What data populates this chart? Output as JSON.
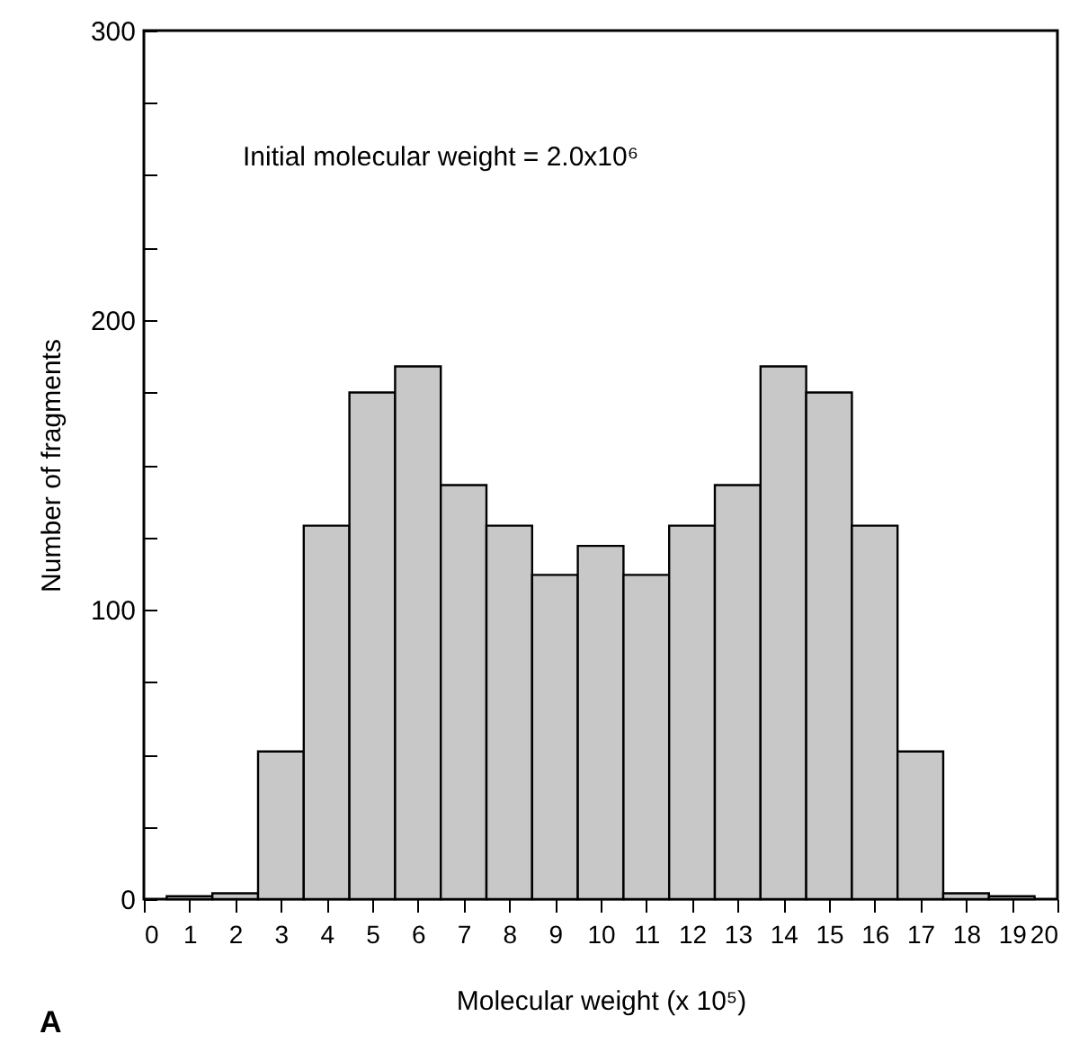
{
  "chart_data": {
    "type": "histogram",
    "xlabel": "Molecular weight (x 10⁵)",
    "ylabel": "Number of fragments",
    "annotations": [
      "Initial molecular weight = 2.0x10⁶",
      "A"
    ],
    "bins": [
      0.5,
      1.5,
      2.5,
      3.5,
      4.5,
      5.5,
      6.5,
      7.5,
      8.5,
      9.5,
      10.5,
      11.5,
      12.5,
      13.5,
      14.5,
      15.5,
      16.5,
      17.5,
      18.5,
      19.5
    ],
    "values": [
      1,
      2,
      51,
      129,
      175,
      184,
      143,
      129,
      112,
      122,
      112,
      129,
      143,
      184,
      175,
      129,
      51,
      2,
      1
    ],
    "color": "#c8c8c8",
    "xlim": [
      0,
      20
    ],
    "xticks": [
      0,
      1,
      2,
      3,
      4,
      5,
      6,
      7,
      8,
      9,
      10,
      11,
      12,
      13,
      14,
      15,
      16,
      17,
      18,
      19,
      20
    ],
    "ylim": [
      0,
      300
    ],
    "yticks": [
      0,
      {
        "value": 25,
        "label": null
      },
      {
        "value": 50,
        "label": null
      },
      {
        "value": 75,
        "label": null
      },
      100,
      {
        "value": 125,
        "label": null
      },
      {
        "value": 150,
        "label": null
      },
      {
        "value": 175,
        "label": null
      },
      200,
      {
        "value": 225,
        "label": null
      },
      {
        "value": 250,
        "label": null
      },
      {
        "value": 275,
        "label": null
      },
      300
    ],
    "grid": false
  }
}
